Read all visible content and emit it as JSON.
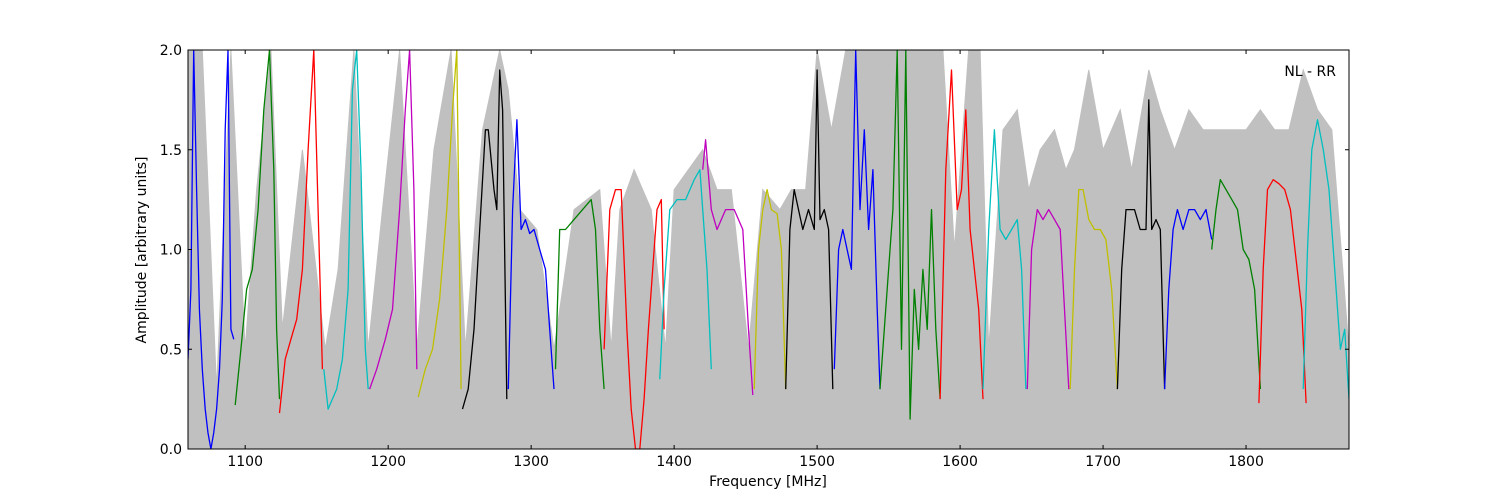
{
  "chart_data": {
    "type": "line",
    "title": "",
    "annotation": "NL - RR",
    "xlabel": "Frequency [MHz]",
    "ylabel": "Amplitude [arbitrary units]",
    "xlim": [
      1060,
      1872
    ],
    "ylim": [
      0.0,
      2.0
    ],
    "xticks": [
      {
        "value": 1100,
        "label": "1100"
      },
      {
        "value": 1200,
        "label": "1200"
      },
      {
        "value": 1300,
        "label": "1300"
      },
      {
        "value": 1400,
        "label": "1400"
      },
      {
        "value": 1500,
        "label": "1500"
      },
      {
        "value": 1600,
        "label": "1600"
      },
      {
        "value": 1700,
        "label": "1700"
      },
      {
        "value": 1800,
        "label": "1800"
      }
    ],
    "yticks": [
      {
        "value": 0.0,
        "label": "0.0"
      },
      {
        "value": 0.5,
        "label": "0.5"
      },
      {
        "value": 1.0,
        "label": "1.0"
      },
      {
        "value": 1.5,
        "label": "1.5"
      },
      {
        "value": 2.0,
        "label": "2.0"
      }
    ],
    "grid": false,
    "background_color": "#c0c0c0",
    "background_band": {
      "x": [
        1060,
        1070,
        1080,
        1090,
        1100,
        1108,
        1118,
        1126,
        1140,
        1156,
        1165,
        1176,
        1186,
        1196,
        1208,
        1220,
        1232,
        1244,
        1254,
        1266,
        1278,
        1284,
        1292,
        1304,
        1316,
        1330,
        1348,
        1356,
        1362,
        1372,
        1384,
        1394,
        1400,
        1410,
        1420,
        1430,
        1440,
        1452,
        1462,
        1474,
        1482,
        1492,
        1500,
        1510,
        1520,
        1530,
        1540,
        1552,
        1560,
        1570,
        1580,
        1588,
        1596,
        1606,
        1614,
        1620,
        1630,
        1640,
        1648,
        1656,
        1666,
        1674,
        1680,
        1690,
        1700,
        1712,
        1720,
        1732,
        1740,
        1750,
        1760,
        1770,
        1780,
        1792,
        1800,
        1810,
        1820,
        1830,
        1840,
        1850,
        1860,
        1872
      ],
      "values": [
        2.0,
        2.0,
        0.3,
        2.0,
        0.5,
        1.3,
        2.0,
        0.6,
        1.5,
        0.5,
        0.9,
        2.0,
        0.5,
        1.2,
        2.0,
        0.5,
        1.5,
        2.0,
        0.5,
        1.6,
        2.0,
        1.8,
        1.2,
        1.1,
        0.5,
        1.2,
        1.3,
        0.5,
        1.2,
        1.4,
        1.2,
        0.5,
        1.3,
        1.4,
        1.5,
        1.3,
        1.3,
        0.5,
        1.3,
        1.2,
        1.3,
        1.3,
        2.0,
        1.6,
        2.0,
        2.0,
        2.0,
        2.0,
        2.0,
        2.0,
        2.0,
        2.0,
        1.0,
        2.0,
        2.0,
        0.5,
        1.6,
        1.7,
        1.3,
        1.5,
        1.6,
        1.4,
        1.5,
        1.9,
        1.5,
        1.7,
        1.4,
        1.9,
        1.7,
        1.5,
        1.7,
        1.6,
        1.6,
        1.6,
        1.6,
        1.7,
        1.6,
        1.6,
        1.9,
        1.7,
        1.6,
        0.5
      ]
    },
    "series": [
      {
        "color": "#0000ff",
        "x": [
          1060,
          1062,
          1064,
          1066,
          1068,
          1070,
          1072,
          1074,
          1076,
          1078,
          1080,
          1082,
          1084,
          1086,
          1088,
          1090,
          1092
        ],
        "values": [
          0.45,
          0.8,
          2.0,
          1.3,
          0.7,
          0.4,
          0.2,
          0.08,
          0.0,
          0.08,
          0.2,
          0.4,
          0.75,
          1.6,
          2.0,
          0.6,
          0.55
        ]
      },
      {
        "color": "#008000",
        "x": [
          1093,
          1097,
          1101,
          1105,
          1109,
          1113,
          1117,
          1120,
          1122,
          1124
        ],
        "values": [
          0.22,
          0.5,
          0.8,
          0.9,
          1.2,
          1.7,
          2.0,
          1.4,
          0.6,
          0.25
        ]
      },
      {
        "color": "#ff0000",
        "x": [
          1124,
          1128,
          1132,
          1136,
          1140,
          1144,
          1148,
          1151,
          1154
        ],
        "values": [
          0.18,
          0.45,
          0.55,
          0.65,
          0.9,
          1.5,
          2.0,
          1.2,
          0.4
        ]
      },
      {
        "color": "#00bfbf",
        "x": [
          1155,
          1158,
          1161,
          1164,
          1168,
          1172,
          1175,
          1178,
          1181,
          1184,
          1186
        ],
        "values": [
          0.4,
          0.2,
          0.25,
          0.3,
          0.45,
          0.8,
          1.8,
          2.0,
          1.4,
          0.5,
          0.3
        ]
      },
      {
        "color": "#bf00bf",
        "x": [
          1187,
          1192,
          1198,
          1203,
          1208,
          1212,
          1215,
          1218,
          1220
        ],
        "values": [
          0.3,
          0.4,
          0.55,
          0.7,
          1.2,
          1.7,
          2.0,
          1.3,
          0.4
        ]
      },
      {
        "color": "#bfbf00",
        "x": [
          1221,
          1226,
          1231,
          1236,
          1241,
          1245,
          1248,
          1251
        ],
        "values": [
          0.26,
          0.4,
          0.5,
          0.75,
          1.2,
          1.7,
          2.0,
          0.3
        ]
      },
      {
        "color": "#000000",
        "x": [
          1252,
          1256,
          1260,
          1264,
          1268,
          1270,
          1274,
          1276,
          1278,
          1280,
          1283
        ],
        "values": [
          0.2,
          0.3,
          0.6,
          1.1,
          1.6,
          1.6,
          1.3,
          1.2,
          1.9,
          1.7,
          0.25
        ]
      },
      {
        "color": "#0000ff",
        "x": [
          1284,
          1287,
          1290,
          1293,
          1296,
          1299,
          1302,
          1306,
          1310,
          1313,
          1316
        ],
        "values": [
          0.3,
          1.2,
          1.65,
          1.1,
          1.15,
          1.08,
          1.1,
          1.0,
          0.9,
          0.6,
          0.3
        ]
      },
      {
        "color": "#008000",
        "x": [
          1317,
          1320,
          1324,
          1330,
          1336,
          1342,
          1345,
          1348,
          1351
        ],
        "values": [
          0.4,
          1.1,
          1.1,
          1.15,
          1.2,
          1.25,
          1.1,
          0.6,
          0.3
        ]
      },
      {
        "color": "#ff0000",
        "x": [
          1351,
          1355,
          1359,
          1363,
          1367,
          1370,
          1373,
          1376,
          1379,
          1382,
          1385,
          1388,
          1391,
          1393
        ],
        "values": [
          0.5,
          1.2,
          1.3,
          1.3,
          0.6,
          0.2,
          0.0,
          0.0,
          0.25,
          0.6,
          0.9,
          1.2,
          1.25,
          0.6
        ]
      },
      {
        "color": "#00bfbf",
        "x": [
          1390,
          1393,
          1397,
          1402,
          1408,
          1414,
          1418,
          1420,
          1423,
          1426
        ],
        "values": [
          0.35,
          0.8,
          1.2,
          1.25,
          1.25,
          1.35,
          1.4,
          1.2,
          0.9,
          0.4
        ]
      },
      {
        "color": "#bf00bf",
        "x": [
          1420,
          1422,
          1426,
          1430,
          1436,
          1442,
          1448,
          1452,
          1455
        ],
        "values": [
          1.4,
          1.55,
          1.2,
          1.1,
          1.2,
          1.2,
          1.1,
          0.6,
          0.27
        ]
      },
      {
        "color": "#bfbf00",
        "x": [
          1456,
          1459,
          1462,
          1465,
          1468,
          1472,
          1475,
          1478
        ],
        "values": [
          0.3,
          1.0,
          1.2,
          1.3,
          1.2,
          1.18,
          1.0,
          0.3
        ]
      },
      {
        "color": "#000000",
        "x": [
          1478,
          1481,
          1484,
          1487,
          1490,
          1494,
          1498,
          1500,
          1502,
          1505,
          1508,
          1511
        ],
        "values": [
          0.3,
          1.1,
          1.3,
          1.2,
          1.1,
          1.2,
          1.1,
          1.9,
          1.15,
          1.2,
          1.1,
          0.3
        ]
      },
      {
        "color": "#0000ff",
        "x": [
          1512,
          1515,
          1518,
          1521,
          1524,
          1527,
          1530,
          1533,
          1536,
          1539,
          1542,
          1544
        ],
        "values": [
          0.4,
          1.0,
          1.1,
          1.0,
          0.9,
          2.0,
          1.2,
          1.6,
          1.1,
          1.4,
          0.7,
          0.3
        ]
      },
      {
        "color": "#008000",
        "x": [
          1544,
          1547,
          1550,
          1553,
          1556,
          1559,
          1562,
          1565,
          1568,
          1571,
          1574,
          1577,
          1580,
          1583,
          1586
        ],
        "values": [
          0.3,
          0.6,
          0.9,
          1.2,
          2.0,
          0.5,
          2.0,
          0.15,
          0.8,
          0.5,
          0.9,
          0.6,
          1.2,
          0.6,
          0.25
        ]
      },
      {
        "color": "#ff0000",
        "x": [
          1586,
          1590,
          1594,
          1598,
          1601,
          1604,
          1607,
          1610,
          1613,
          1616
        ],
        "values": [
          0.25,
          1.4,
          1.9,
          1.2,
          1.3,
          1.7,
          1.1,
          0.9,
          0.7,
          0.25
        ]
      },
      {
        "color": "#00bfbf",
        "x": [
          1616,
          1620,
          1624,
          1628,
          1632,
          1636,
          1640,
          1643,
          1646
        ],
        "values": [
          0.3,
          1.1,
          1.6,
          1.1,
          1.05,
          1.1,
          1.15,
          0.9,
          0.3
        ]
      },
      {
        "color": "#bf00bf",
        "x": [
          1647,
          1650,
          1654,
          1658,
          1662,
          1666,
          1670,
          1673,
          1676
        ],
        "values": [
          0.3,
          1.0,
          1.2,
          1.15,
          1.2,
          1.15,
          1.1,
          0.7,
          0.3
        ]
      },
      {
        "color": "#bfbf00",
        "x": [
          1677,
          1680,
          1683,
          1686,
          1690,
          1694,
          1698,
          1702,
          1706,
          1710
        ],
        "values": [
          0.3,
          0.9,
          1.3,
          1.3,
          1.15,
          1.1,
          1.1,
          1.05,
          0.8,
          0.3
        ]
      },
      {
        "color": "#000000",
        "x": [
          1710,
          1713,
          1716,
          1719,
          1722,
          1726,
          1730,
          1732,
          1734,
          1737,
          1740,
          1743
        ],
        "values": [
          0.3,
          0.9,
          1.2,
          1.2,
          1.2,
          1.1,
          1.1,
          1.75,
          1.1,
          1.15,
          1.1,
          0.3
        ]
      },
      {
        "color": "#0000ff",
        "x": [
          1743,
          1746,
          1749,
          1752,
          1756,
          1760,
          1764,
          1768,
          1772,
          1776
        ],
        "values": [
          0.3,
          0.8,
          1.1,
          1.2,
          1.1,
          1.2,
          1.2,
          1.15,
          1.2,
          1.05
        ]
      },
      {
        "color": "#008000",
        "x": [
          1776,
          1779,
          1782,
          1786,
          1790,
          1794,
          1798,
          1802,
          1806,
          1810
        ],
        "values": [
          1.0,
          1.2,
          1.35,
          1.3,
          1.25,
          1.2,
          1.0,
          0.95,
          0.8,
          0.3
        ]
      },
      {
        "color": "#ff0000",
        "x": [
          1809,
          1812,
          1815,
          1819,
          1823,
          1827,
          1831,
          1835,
          1839,
          1842
        ],
        "values": [
          0.23,
          0.9,
          1.3,
          1.35,
          1.33,
          1.3,
          1.2,
          0.95,
          0.7,
          0.23
        ]
      },
      {
        "color": "#00bfbf",
        "x": [
          1840,
          1843,
          1846,
          1850,
          1854,
          1858,
          1862,
          1866,
          1869,
          1872
        ],
        "values": [
          0.3,
          1.0,
          1.5,
          1.65,
          1.5,
          1.3,
          0.9,
          0.5,
          0.6,
          0.25
        ]
      }
    ]
  }
}
